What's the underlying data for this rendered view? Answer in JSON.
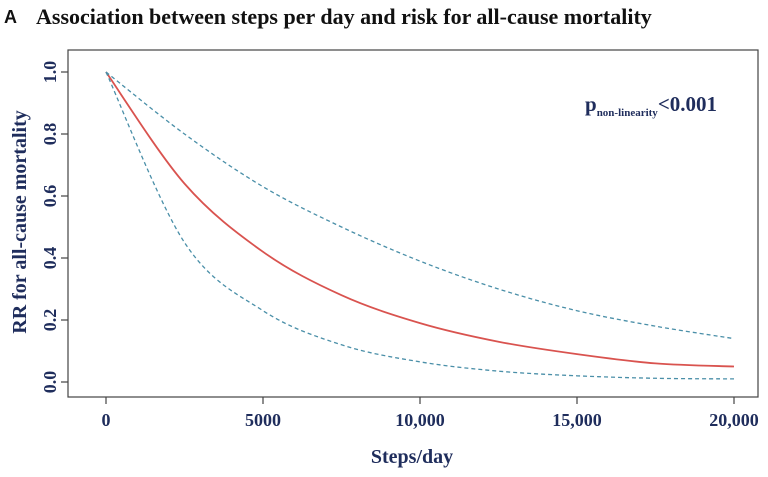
{
  "panel_letter": "A",
  "chart_data": {
    "type": "line",
    "title": "Association between steps per day and risk for all-cause mortality",
    "xlabel": "Steps/day",
    "ylabel": "RR for all-cause mortality",
    "xlim": [
      0,
      20000
    ],
    "ylim": [
      0.0,
      1.0
    ],
    "x_ticks": [
      0,
      5000,
      10000,
      15000,
      20000
    ],
    "x_tick_labels": [
      "0",
      "5000",
      "10,000",
      "15,000",
      "20,000"
    ],
    "y_ticks": [
      0.0,
      0.2,
      0.4,
      0.6,
      0.8,
      1.0
    ],
    "y_tick_labels": [
      "0.0",
      "0.2",
      "0.4",
      "0.6",
      "0.8",
      "1.0"
    ],
    "grid": false,
    "annotation": {
      "main": "p",
      "subscript": "non-linearity",
      "suffix": "<0.001"
    },
    "series": [
      {
        "role": "estimate",
        "color": "#d9534f",
        "style": "solid",
        "x": [
          0,
          2500,
          5000,
          7500,
          10000,
          12500,
          15000,
          17500,
          20000
        ],
        "y": [
          1.0,
          0.64,
          0.42,
          0.28,
          0.19,
          0.13,
          0.09,
          0.06,
          0.05
        ]
      },
      {
        "role": "upper-ci",
        "color": "#4a8fa8",
        "style": "dashed",
        "x": [
          0,
          2500,
          5000,
          7500,
          10000,
          12500,
          15000,
          17500,
          20000
        ],
        "y": [
          1.0,
          0.8,
          0.63,
          0.5,
          0.39,
          0.3,
          0.23,
          0.18,
          0.14
        ]
      },
      {
        "role": "lower-ci",
        "color": "#4a8fa8",
        "style": "dashed",
        "x": [
          0,
          2500,
          5000,
          7500,
          10000,
          12500,
          15000,
          17500,
          20000
        ],
        "y": [
          1.0,
          0.45,
          0.23,
          0.12,
          0.065,
          0.035,
          0.02,
          0.012,
          0.01
        ]
      }
    ]
  }
}
